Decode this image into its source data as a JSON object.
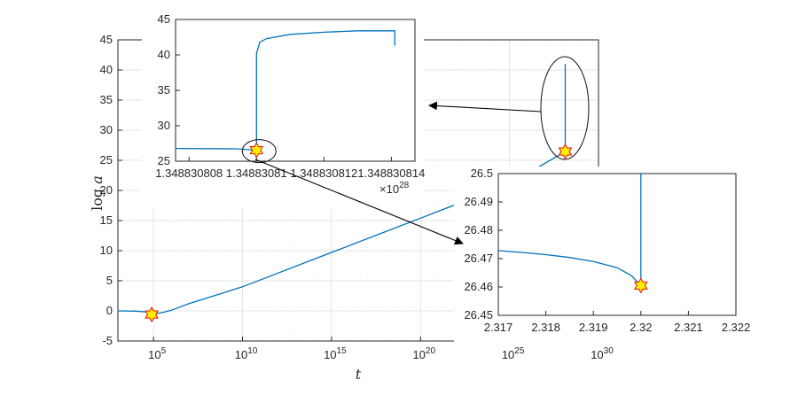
{
  "chart_data": [
    {
      "panel": "main",
      "type": "line",
      "xscale": "log",
      "xlabel": "t",
      "ylabel": "log a",
      "xlim": [
        1000,
        1e+30
      ],
      "ylim": [
        -5,
        45
      ],
      "xtick_labels": [
        "10^5",
        "10^10",
        "10^15",
        "10^20",
        "10^25",
        "10^30"
      ],
      "xtick_values": [
        100000.0,
        10000000000.0,
        1000000000000000.0,
        1e+20,
        1e+25,
        1e+30
      ],
      "ytick_labels": [
        "-5",
        "0",
        "5",
        "10",
        "15",
        "20",
        "25",
        "30",
        "35",
        "40",
        "45"
      ],
      "grid": true,
      "series": [
        {
          "color": "#0072bd",
          "x": [
            1000,
            10000,
            50000,
            100000,
            300000,
            1000000,
            10000000.0,
            10000000000.0,
            1000000000000000.0,
            1e+20,
            1e+25,
            1.3488e+28,
            1.3488e+28,
            1.3488e+28
          ],
          "y": [
            0.0,
            -0.05,
            -0.2,
            -0.5,
            -0.3,
            0.1,
            1.2,
            4.0,
            9.7,
            15.4,
            21.1,
            26.46,
            26.5,
            41.0
          ]
        }
      ],
      "markers": [
        {
          "x": 79000,
          "y": -0.6,
          "shape": "hexagram",
          "fill": "#ffee00",
          "edge": "#e0201b"
        },
        {
          "x": 1.3488e+28,
          "y": 26.46,
          "shape": "hexagram",
          "fill": "#ffee00",
          "edge": "#e0201b"
        }
      ]
    },
    {
      "panel": "inset-top",
      "type": "line",
      "xlim": [
        1.3488308076e+28,
        1.3488308147e+28
      ],
      "ylim": [
        25,
        45
      ],
      "xtick_labels": [
        "1.348830808",
        "1.34883081",
        "1.348830812",
        "1.348830814"
      ],
      "xtick_values": [
        1.348830808e+28,
        1.34883081e+28,
        1.348830812e+28,
        1.348830814e+28
      ],
      "ytick_labels": [
        "25",
        "30",
        "35",
        "40",
        "45"
      ],
      "exponent_label": "×10",
      "exponent_value": "28",
      "series": [
        {
          "color": "#0072bd",
          "x": [
            1.3488308076e+28,
            1.3488308094e+28,
            1.34883081e+28,
            1.34883081e+28,
            1.3488308101e+28,
            1.3488308103e+28,
            1.348830811e+28,
            1.348830812e+28,
            1.348830813e+28,
            1.3488308141e+28,
            1.3488308141e+28
          ],
          "y": [
            26.8,
            26.75,
            26.55,
            40.2,
            41.8,
            42.3,
            42.9,
            43.2,
            43.4,
            43.4,
            41.3
          ]
        }
      ],
      "markers": [
        {
          "x": 1.34883081e+28,
          "y": 26.55,
          "shape": "hexagram",
          "fill": "#ffee00",
          "edge": "#e0201b"
        }
      ]
    },
    {
      "panel": "inset-right",
      "type": "line",
      "xlim": [
        2.317,
        2.322
      ],
      "ylim": [
        26.45,
        26.5
      ],
      "xtick_labels": [
        "2.317",
        "2.318",
        "2.319",
        "2.32",
        "2.321",
        "2.322"
      ],
      "ytick_labels": [
        "26.45",
        "26.46",
        "26.47",
        "26.48",
        "26.49",
        "26.5"
      ],
      "series": [
        {
          "color": "#0072bd",
          "x": [
            2.317,
            2.3175,
            2.318,
            2.3185,
            2.319,
            2.3195,
            2.3198,
            2.32,
            2.32
          ],
          "y": [
            26.4728,
            26.4722,
            26.4714,
            26.4704,
            26.469,
            26.4668,
            26.464,
            26.4605,
            26.5
          ]
        }
      ],
      "markers": [
        {
          "x": 2.32,
          "y": 26.4605,
          "shape": "hexagram",
          "fill": "#ffee00",
          "edge": "#e0201b"
        }
      ]
    }
  ]
}
